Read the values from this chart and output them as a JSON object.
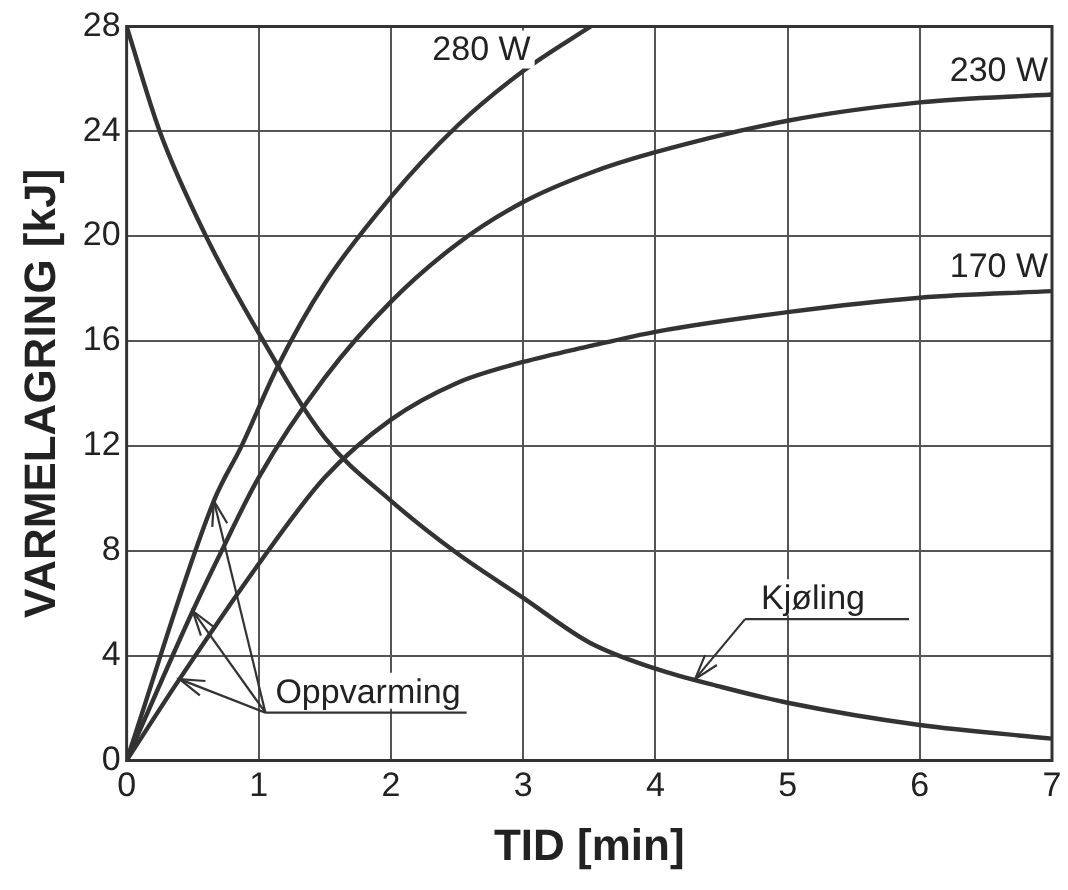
{
  "chart_data": {
    "type": "line",
    "xlabel": "TID [min]",
    "ylabel": "VARMELAGRING [kJ]",
    "xlim": [
      0,
      7
    ],
    "xticks": [
      0,
      1,
      2,
      3,
      4,
      5,
      6,
      7
    ],
    "ylim": [
      0,
      28
    ],
    "yticks": [
      0,
      4,
      8,
      12,
      16,
      20,
      24,
      28
    ],
    "grid": true,
    "legend": false,
    "marker": "none",
    "line_style": "solid",
    "series": [
      {
        "name": "280 W",
        "color": "#333333",
        "x": [
          0,
          0.66,
          0.87,
          1.14,
          1.5,
          2,
          2.5,
          3,
          3.51
        ],
        "values": [
          0,
          9.9,
          12,
          15,
          18.2,
          21.5,
          24.2,
          26.3,
          28
        ]
      },
      {
        "name": "230 W",
        "color": "#333333",
        "x": [
          0,
          0.5,
          0.7,
          1,
          1.5,
          2,
          2.5,
          3,
          3.5,
          4,
          5,
          6,
          7
        ],
        "values": [
          0,
          5.7,
          7.8,
          10.8,
          14.6,
          17.5,
          19.7,
          21.3,
          22.4,
          23.2,
          24.4,
          25.1,
          25.4
        ]
      },
      {
        "name": "170 W",
        "color": "#333333",
        "x": [
          0,
          0.4,
          1,
          1.5,
          2,
          2.5,
          3,
          3.5,
          4,
          5,
          6,
          7
        ],
        "values": [
          0,
          3.1,
          7.5,
          10.8,
          13,
          14.4,
          15.2,
          15.8,
          16.35,
          17.1,
          17.65,
          17.9
        ]
      },
      {
        "color": "#333333",
        "x": [
          0,
          0.25,
          0.6,
          1,
          1.5,
          2,
          2.5,
          3,
          3.5,
          4,
          4.5,
          5,
          6,
          7
        ],
        "values": [
          28,
          24,
          20,
          16.3,
          12.3,
          9.9,
          7.9,
          6.2,
          4.5,
          3.5,
          2.8,
          2.2,
          1.35,
          0.83
        ]
      }
    ],
    "annotations": [
      {
        "text": "Oppvarming",
        "x": 0.66,
        "y": 9.9
      },
      {
        "text": "Kjøling",
        "x": 4.3,
        "y": 3.1
      }
    ]
  }
}
